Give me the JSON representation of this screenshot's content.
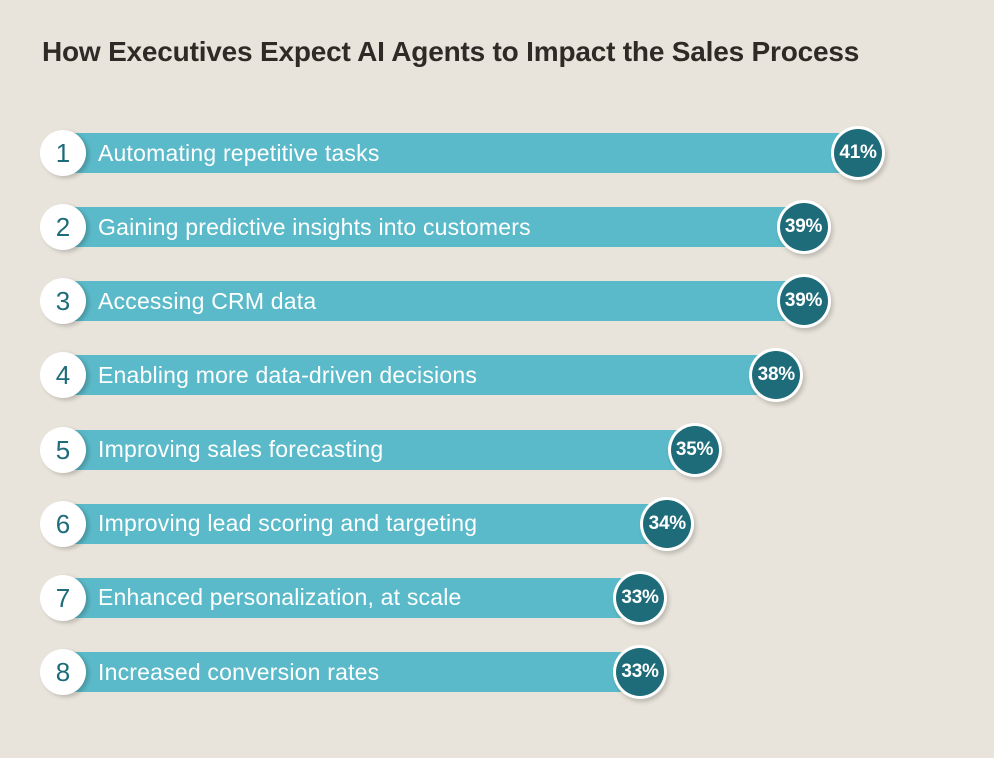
{
  "chart_data": {
    "type": "bar",
    "orientation": "horizontal",
    "title": "How Executives Expect AI Agents to Impact the Sales Process",
    "categories": [
      "Automating repetitive tasks",
      "Gaining predictive insights into customers",
      "Accessing CRM data",
      "Enabling more data-driven decisions",
      "Improving sales forecasting",
      "Improving lead scoring and targeting",
      "Enhanced personalization, at scale",
      "Increased conversion rates"
    ],
    "ranks": [
      1,
      2,
      3,
      4,
      5,
      6,
      7,
      8
    ],
    "values": [
      41,
      39,
      39,
      38,
      35,
      34,
      33,
      33
    ],
    "value_labels": [
      "41%",
      "39%",
      "39%",
      "38%",
      "35%",
      "34%",
      "33%",
      "33%"
    ],
    "value_suffix": "%",
    "xlim": [
      0,
      45
    ],
    "grid": false,
    "legend": "none",
    "colors": {
      "background": "#e8e4db",
      "bar": "#5bbac9",
      "badge": "#1e6c7a",
      "rank_text": "#1e6c7a",
      "bar_text": "#ffffff",
      "title_text": "#2e2b27"
    }
  }
}
